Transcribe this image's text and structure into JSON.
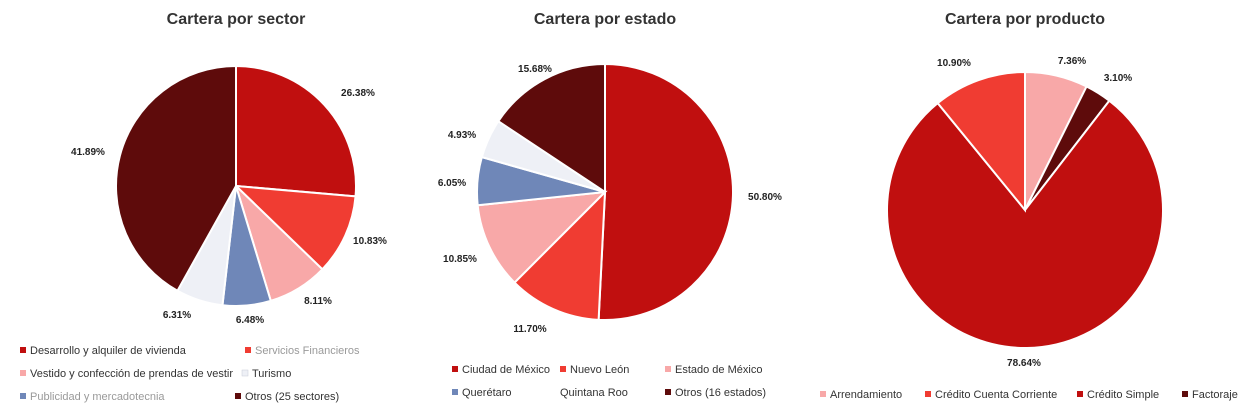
{
  "chart_data": [
    {
      "type": "pie",
      "title": "Cartera por sector",
      "slices": [
        {
          "label": "Desarrollo y alquiler de vivienda",
          "value": 26.38,
          "display": "26.38%",
          "color": "#c00f0f"
        },
        {
          "label": "Servicios Financieros",
          "value": 10.83,
          "display": "10.83%",
          "color": "#f03c32"
        },
        {
          "label": "Vestido y confección de prendas de vestir",
          "value": 8.11,
          "display": "8.11%",
          "color": "#f8a8a8"
        },
        {
          "label": "Publicidad y mercadotecnia",
          "value": 6.48,
          "display": "6.48%",
          "color": "#6f87b8"
        },
        {
          "label": "Turismo",
          "value": 6.31,
          "display": "6.31%",
          "color": "#eef0f6"
        },
        {
          "label": "Otros (25 sectores)",
          "value": 41.89,
          "display": "41.89%",
          "color": "#5e0b0b"
        }
      ],
      "legend": [
        {
          "label": "Desarrollo y alquiler de vivienda",
          "color": "#c00f0f",
          "faint": false
        },
        {
          "label": "Servicios Financieros",
          "color": "#f03c32",
          "faint": true
        },
        {
          "label": "Vestido y confección de prendas de vestir",
          "color": "#f8a8a8",
          "faint": false
        },
        {
          "label": "Turismo",
          "color": "#eef0f6",
          "faint": false
        },
        {
          "label": "Publicidad y mercadotecnia",
          "color": "#6f87b8",
          "faint": true
        },
        {
          "label": "Otros (25 sectores)",
          "color": "#5e0b0b",
          "faint": false
        }
      ]
    },
    {
      "type": "pie",
      "title": "Cartera por estado",
      "slices": [
        {
          "label": "Ciudad de México",
          "value": 50.8,
          "display": "50.80%",
          "color": "#c00f0f"
        },
        {
          "label": "Nuevo León",
          "value": 11.7,
          "display": "11.70%",
          "color": "#f03c32"
        },
        {
          "label": "Estado de México",
          "value": 10.85,
          "display": "10.85%",
          "color": "#f8a8a8"
        },
        {
          "label": "Querétaro",
          "value": 6.05,
          "display": "6.05%",
          "color": "#6f87b8"
        },
        {
          "label": "Quintana Roo",
          "value": 4.93,
          "display": "4.93%",
          "color": "#eef0f6"
        },
        {
          "label": "Otros (16 estados)",
          "value": 15.68,
          "display": "15.68%",
          "color": "#5e0b0b"
        }
      ],
      "legend": [
        {
          "label": "Ciudad de México",
          "color": "#c00f0f",
          "faint": false
        },
        {
          "label": "Nuevo León",
          "color": "#f03c32",
          "faint": false
        },
        {
          "label": "Estado de México",
          "color": "#f8a8a8",
          "faint": false
        },
        {
          "label": "Querétaro",
          "color": "#6f87b8",
          "faint": false
        },
        {
          "label": "Quintana Roo",
          "color": "#eef0f6",
          "faint": false
        },
        {
          "label": "Otros (16 estados)",
          "color": "#5e0b0b",
          "faint": false
        }
      ]
    },
    {
      "type": "pie",
      "title": "Cartera por producto",
      "slices": [
        {
          "label": "Arrendamiento",
          "value": 7.36,
          "display": "7.36%",
          "color": "#f8a8a8"
        },
        {
          "label": "Factoraje",
          "value": 3.1,
          "display": "3.10%",
          "color": "#5e0b0b"
        },
        {
          "label": "Crédito Simple",
          "value": 78.64,
          "display": "78.64%",
          "color": "#c00f0f"
        },
        {
          "label": "Crédito Cuenta Corriente",
          "value": 10.9,
          "display": "10.90%",
          "color": "#f03c32"
        }
      ],
      "legend": [
        {
          "label": "Arrendamiento",
          "color": "#f8a8a8",
          "faint": false
        },
        {
          "label": "Crédito Cuenta Corriente",
          "color": "#f03c32",
          "faint": false
        },
        {
          "label": "Crédito Simple",
          "color": "#c00f0f",
          "faint": false
        },
        {
          "label": "Factoraje",
          "color": "#5e0b0b",
          "faint": false
        }
      ]
    }
  ]
}
